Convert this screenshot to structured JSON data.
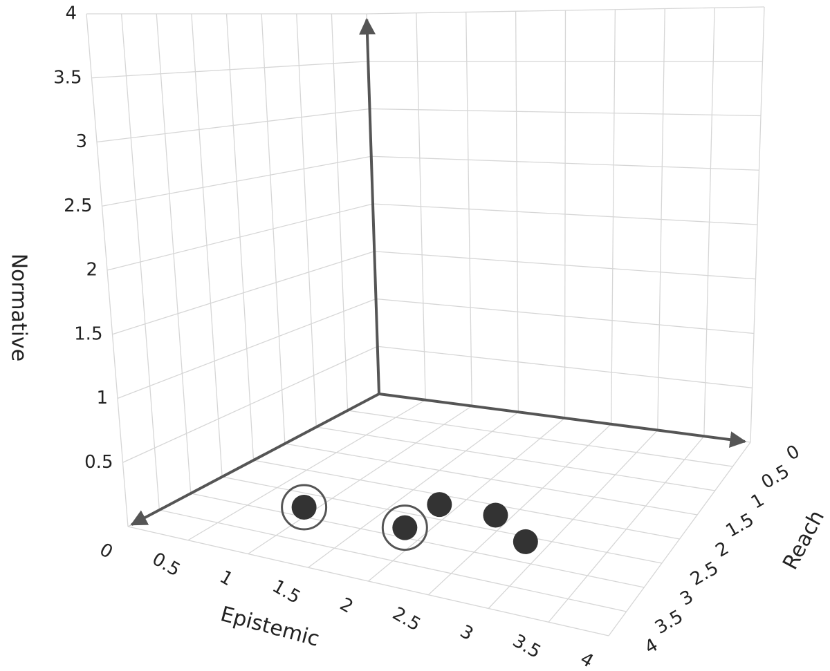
{
  "chart_data": {
    "type": "scatter3d",
    "x_label": "Epistemic",
    "y_label": "Reach",
    "z_label": "Normative",
    "xlim": [
      0,
      4
    ],
    "ylim": [
      0,
      4
    ],
    "zlim": [
      0,
      4
    ],
    "xticks": [
      0,
      0.5,
      1,
      1.5,
      2,
      2.5,
      3,
      3.5,
      4
    ],
    "yticks": [
      0,
      0.5,
      1,
      1.5,
      2,
      2.5,
      3,
      3.5,
      4
    ],
    "zticks": [
      0.5,
      1,
      1.5,
      2,
      2.5,
      3,
      3.5,
      4
    ],
    "grid": true,
    "series": [
      {
        "color": "#333333",
        "x": [
          0.9,
          1.8,
          1.84,
          2.36,
          2.8
        ],
        "y": [
          2.8,
          2.8,
          2.2,
          2.2,
          2.6
        ],
        "z": [
          0,
          0,
          0,
          0,
          0
        ],
        "highlighted": [
          true,
          true,
          false,
          false,
          false
        ]
      }
    ]
  }
}
